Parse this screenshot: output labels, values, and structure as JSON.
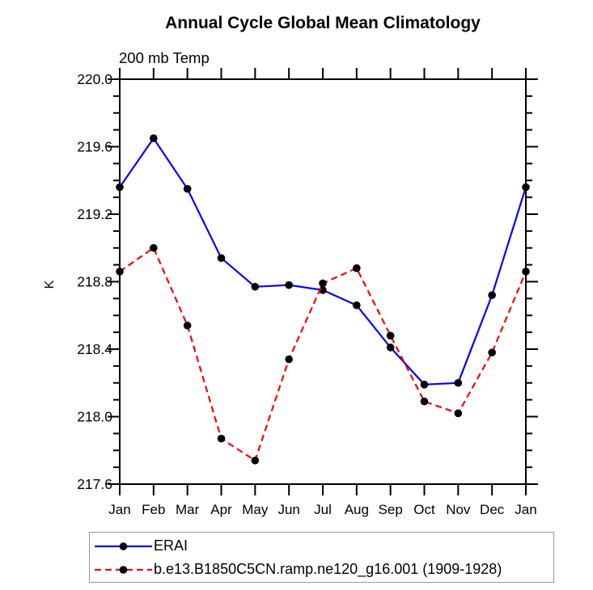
{
  "chart_data": {
    "type": "line",
    "title": "Annual Cycle Global Mean Climatology",
    "subtitle": "200 mb Temp",
    "ylabel": "K",
    "categories": [
      "Jan",
      "Feb",
      "Mar",
      "Apr",
      "May",
      "Jun",
      "Jul",
      "Aug",
      "Sep",
      "Oct",
      "Nov",
      "Dec",
      "Jan"
    ],
    "ylim": [
      217.6,
      220.0
    ],
    "ytick_major": [
      217.6,
      218.0,
      218.4,
      218.8,
      219.2,
      219.6,
      220.0
    ],
    "ytick_labels": [
      "217.6",
      "218.0",
      "218.4",
      "218.8",
      "219.2",
      "219.6",
      "220.0"
    ],
    "ytick_minor_step": 0.1,
    "grid": false,
    "legend_position": "bottom-left",
    "axis_color": "#000000",
    "marker_color": "#000000",
    "series": [
      {
        "name": "ERAI",
        "color": "#0000ff",
        "line_style": "solid",
        "marker": "circle",
        "values": [
          219.36,
          219.65,
          219.35,
          218.94,
          218.77,
          218.78,
          218.75,
          218.66,
          218.41,
          218.19,
          218.2,
          218.72,
          219.36
        ]
      },
      {
        "name": "b.e13.B1850C5CN.ramp.ne120_g16.001 (1909-1928)",
        "color": "#ff0000",
        "line_style": "dashed",
        "marker": "circle",
        "values": [
          218.86,
          219.0,
          218.54,
          217.87,
          217.74,
          218.34,
          218.79,
          218.88,
          218.48,
          218.09,
          218.02,
          218.38,
          218.86
        ]
      }
    ]
  }
}
